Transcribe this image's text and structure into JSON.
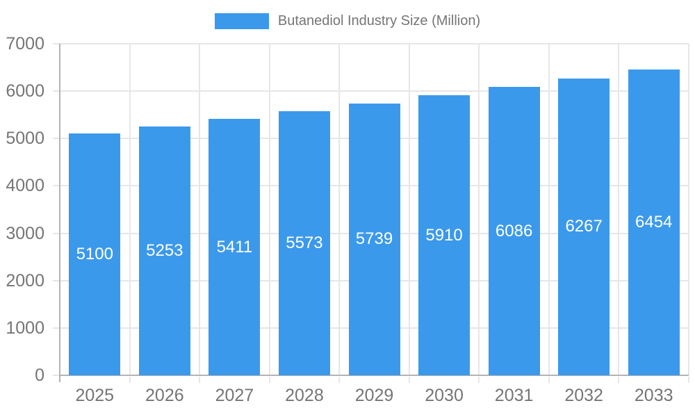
{
  "legend": {
    "label": "Butanediol Industry Size (Million)"
  },
  "colors": {
    "bar": "#3B99EB",
    "grid": "#E6E6E6",
    "axis": "#B3B3B3",
    "tick_text": "#757575",
    "value_label": "#FFFFFF",
    "background": "#FFFFFF"
  },
  "chart_data": {
    "type": "bar",
    "title": "Butanediol Industry Size (Million)",
    "categories": [
      "2025",
      "2026",
      "2027",
      "2028",
      "2029",
      "2030",
      "2031",
      "2032",
      "2033"
    ],
    "values": [
      5100,
      5253,
      5411,
      5573,
      5739,
      5910,
      6086,
      6267,
      6454
    ],
    "xlabel": "",
    "ylabel": "",
    "ylim": [
      0,
      7000
    ],
    "yticks": [
      0,
      1000,
      2000,
      3000,
      4000,
      5000,
      6000,
      7000
    ],
    "grid": true,
    "legend_position": "top",
    "value_labels": "inside-center"
  }
}
